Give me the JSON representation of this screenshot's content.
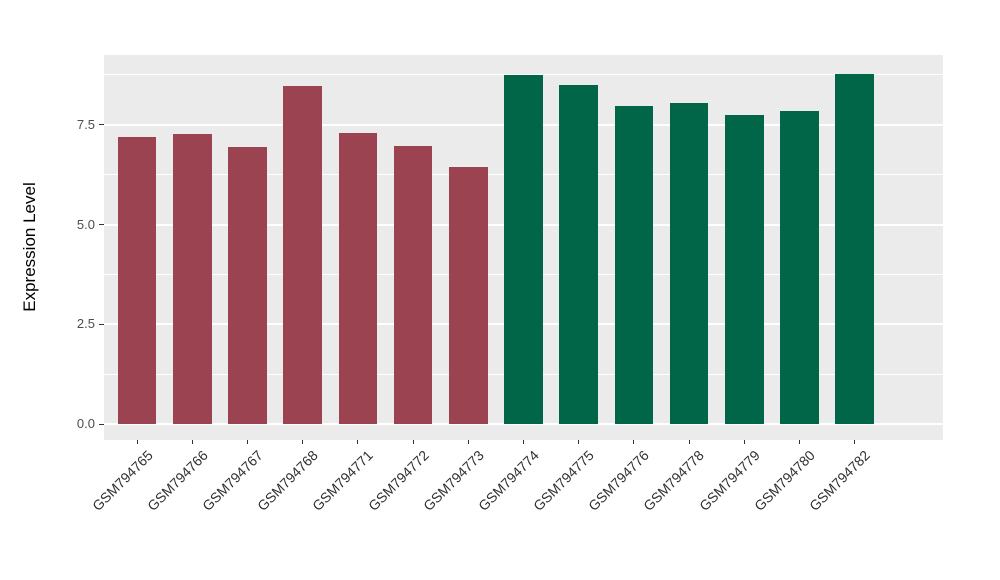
{
  "chart_data": {
    "type": "bar",
    "title": "",
    "xlabel": "",
    "ylabel": "Expression Level",
    "categories": [
      "GSM794765",
      "GSM794766",
      "GSM794767",
      "GSM794768",
      "GSM794771",
      "GSM794772",
      "GSM794773",
      "GSM794774",
      "GSM794775",
      "GSM794776",
      "GSM794778",
      "GSM794779",
      "GSM794780",
      "GSM794782"
    ],
    "values": [
      7.2,
      7.28,
      6.95,
      8.47,
      7.29,
      6.97,
      6.44,
      8.74,
      8.5,
      7.96,
      8.04,
      7.74,
      7.84,
      8.77
    ],
    "bar_colors": [
      "#9B4351",
      "#9B4351",
      "#9B4351",
      "#9B4351",
      "#9B4351",
      "#9B4351",
      "#9B4351",
      "#016647",
      "#016647",
      "#016647",
      "#016647",
      "#016647",
      "#016647",
      "#016647"
    ],
    "group_colors": {
      "left_group_maroon": "#9B4351",
      "right_group_green": "#016647"
    },
    "ytick_labels": [
      "0.0",
      "2.5",
      "5.0",
      "7.5"
    ],
    "ytick_values": [
      0,
      2.5,
      5.0,
      7.5
    ],
    "minor_tick_values": [
      1.25,
      3.75,
      6.25,
      8.75
    ],
    "ylim": [
      -0.4,
      9.25
    ],
    "grid": "on",
    "legend": "none",
    "panel_bg": "#EBEBEB",
    "grid_color": "#FFFFFF",
    "tick_color": "#333333",
    "axis_text_color": "#4D4D4D"
  }
}
